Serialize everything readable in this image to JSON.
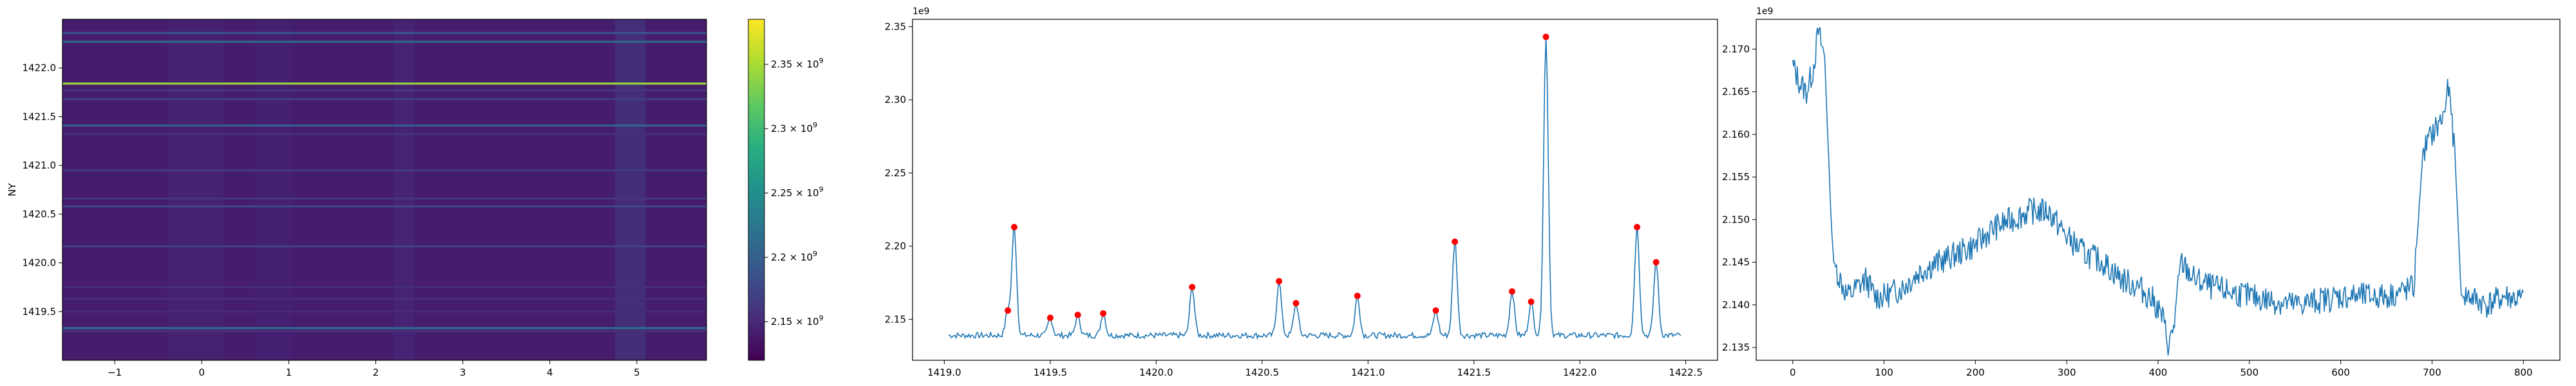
{
  "chart_data": [
    {
      "type": "heatmap",
      "title": "",
      "xlabel": "",
      "ylabel": "NY",
      "xlim": [
        -1.6,
        5.8
      ],
      "ylim": [
        1419.0,
        1422.5
      ],
      "x_ticks": [
        -1,
        0,
        1,
        2,
        3,
        4,
        5
      ],
      "x_tick_labels": [
        "−1",
        "0",
        "1",
        "2",
        "3",
        "4",
        "5"
      ],
      "y_ticks": [
        1419.5,
        1420.0,
        1420.5,
        1421.0,
        1421.5,
        1422.0
      ],
      "y_tick_labels": [
        "1419.5",
        "1420.0",
        "1420.5",
        "1421.0",
        "1421.5",
        "1422.0"
      ],
      "colormap": "viridis",
      "colorbar": {
        "vmin": 2120000000.0,
        "vmax": 2385000000.0,
        "ticks": [
          2150000000.0,
          2200000000.0,
          2250000000.0,
          2300000000.0,
          2350000000.0
        ],
        "labels": [
          {
            "mant": "2.15",
            "exp": "9"
          },
          {
            "mant": "2.2",
            "exp": "9"
          },
          {
            "mant": "2.25",
            "exp": "9"
          },
          {
            "mant": "2.3",
            "exp": "9"
          },
          {
            "mant": "2.35",
            "exp": "9"
          }
        ]
      },
      "row_values": [
        [
          1419.3,
          2156000000.0
        ],
        [
          1419.33,
          2213000000.0
        ],
        [
          1419.5,
          2151000000.0
        ],
        [
          1419.63,
          2153000000.0
        ],
        [
          1419.75,
          2154000000.0
        ],
        [
          1420.17,
          2172000000.0
        ],
        [
          1420.58,
          2176000000.0
        ],
        [
          1420.66,
          2161000000.0
        ],
        [
          1420.95,
          2166000000.0
        ],
        [
          1421.32,
          2156000000.0
        ],
        [
          1421.41,
          2203000000.0
        ],
        [
          1421.68,
          2169000000.0
        ],
        [
          1421.77,
          2162000000.0
        ],
        [
          1421.84,
          2343000000.0
        ],
        [
          1422.27,
          2213000000.0
        ],
        [
          1422.36,
          2189000000.0
        ]
      ],
      "background_value": 2140000000.0,
      "column_bands": [
        {
          "x": [
            -0.4,
            0.25
          ],
          "value": 2149000000.0
        },
        {
          "x": [
            0.6,
            1.05
          ],
          "value": 2147000000.0
        },
        {
          "x": [
            2.2,
            2.45
          ],
          "value": 2152000000.0
        },
        {
          "x": [
            4.75,
            5.1
          ],
          "value": 2168000000.0
        }
      ]
    },
    {
      "type": "line",
      "title": "",
      "xlabel": "",
      "ylabel": "",
      "offset_text": "1e9",
      "xlim": [
        1418.85,
        1422.65
      ],
      "ylim": [
        2.122,
        2.355
      ],
      "x_ticks": [
        1419.0,
        1419.5,
        1420.0,
        1420.5,
        1421.0,
        1421.5,
        1422.0,
        1422.5
      ],
      "x_tick_labels": [
        "1419.0",
        "1419.5",
        "1420.0",
        "1420.5",
        "1421.0",
        "1421.5",
        "1422.0",
        "1422.5"
      ],
      "y_ticks": [
        2.15,
        2.2,
        2.25,
        2.3,
        2.35
      ],
      "y_tick_labels": [
        "2.15",
        "2.20",
        "2.25",
        "2.30",
        "2.35"
      ],
      "series": [
        {
          "color": "#1f77b4",
          "x_range": [
            1419.02,
            1422.48
          ],
          "baseline": 2.139,
          "peaks": [
            [
              1419.3,
              2.156
            ],
            [
              1419.33,
              2.213
            ],
            [
              1419.5,
              2.151
            ],
            [
              1419.63,
              2.153
            ],
            [
              1419.75,
              2.154
            ],
            [
              1420.17,
              2.172
            ],
            [
              1420.58,
              2.176
            ],
            [
              1420.66,
              2.161
            ],
            [
              1420.95,
              2.166
            ],
            [
              1421.32,
              2.156
            ],
            [
              1421.41,
              2.203
            ],
            [
              1421.68,
              2.169
            ],
            [
              1421.77,
              2.162
            ],
            [
              1421.84,
              2.343
            ],
            [
              1422.27,
              2.213
            ],
            [
              1422.36,
              2.189
            ]
          ]
        }
      ],
      "markers": {
        "color": "#ff0000",
        "points": [
          [
            1419.3,
            2.156
          ],
          [
            1419.33,
            2.213
          ],
          [
            1419.5,
            2.151
          ],
          [
            1419.63,
            2.153
          ],
          [
            1419.75,
            2.154
          ],
          [
            1420.17,
            2.172
          ],
          [
            1420.58,
            2.176
          ],
          [
            1420.66,
            2.161
          ],
          [
            1420.95,
            2.166
          ],
          [
            1421.32,
            2.156
          ],
          [
            1421.41,
            2.203
          ],
          [
            1421.68,
            2.169
          ],
          [
            1421.77,
            2.162
          ],
          [
            1421.84,
            2.343
          ],
          [
            1422.27,
            2.213
          ],
          [
            1422.36,
            2.189
          ]
        ]
      }
    },
    {
      "type": "line",
      "title": "",
      "xlabel": "",
      "ylabel": "",
      "offset_text": "1e9",
      "xlim": [
        -40,
        840
      ],
      "ylim": [
        2.1335,
        2.1735
      ],
      "x_ticks": [
        0,
        100,
        200,
        300,
        400,
        500,
        600,
        700,
        800
      ],
      "x_tick_labels": [
        "0",
        "100",
        "200",
        "300",
        "400",
        "500",
        "600",
        "700",
        "800"
      ],
      "y_ticks": [
        2.135,
        2.14,
        2.145,
        2.15,
        2.155,
        2.16,
        2.165,
        2.17
      ],
      "y_tick_labels": [
        "2.135",
        "2.140",
        "2.145",
        "2.150",
        "2.155",
        "2.160",
        "2.165",
        "2.170"
      ],
      "series": [
        {
          "color": "#1f77b4",
          "x": [
            0,
            8,
            15,
            22,
            28,
            35,
            42,
            45,
            52,
            60,
            70,
            80,
            90,
            100,
            120,
            140,
            160,
            180,
            200,
            220,
            240,
            260,
            280,
            300,
            320,
            340,
            360,
            380,
            395,
            405,
            412,
            418,
            425,
            440,
            460,
            500,
            550,
            600,
            650,
            680,
            690,
            700,
            712,
            718,
            725,
            732,
            740,
            760,
            780,
            800
          ],
          "y": [
            2.168,
            2.166,
            2.165,
            2.1675,
            2.172,
            2.169,
            2.15,
            2.145,
            2.143,
            2.141,
            2.142,
            2.143,
            2.141,
            2.141,
            2.142,
            2.144,
            2.145,
            2.146,
            2.147,
            2.149,
            2.15,
            2.151,
            2.151,
            2.148,
            2.146,
            2.145,
            2.143,
            2.142,
            2.1405,
            2.1385,
            2.135,
            2.138,
            2.145,
            2.143,
            2.142,
            2.141,
            2.14,
            2.141,
            2.141,
            2.142,
            2.158,
            2.16,
            2.162,
            2.1655,
            2.158,
            2.141,
            2.141,
            2.14,
            2.141,
            2.1405
          ]
        }
      ]
    }
  ]
}
